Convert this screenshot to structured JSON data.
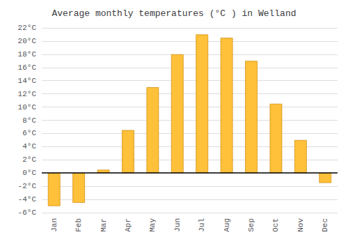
{
  "chart_data": {
    "type": "bar",
    "title": "Average monthly temperatures (°C ) in Welland",
    "categories": [
      "Jan",
      "Feb",
      "Mar",
      "Apr",
      "May",
      "Jun",
      "Jul",
      "Aug",
      "Sep",
      "Oct",
      "Nov",
      "Dec"
    ],
    "values": [
      -5.0,
      -4.5,
      0.5,
      6.5,
      13.0,
      18.0,
      21.0,
      20.5,
      17.0,
      10.5,
      5.0,
      -1.5
    ],
    "color": "#FFC03A",
    "ylim": [
      -6,
      22
    ],
    "yticks": [
      {
        "value": -6,
        "label": "-6°C"
      },
      {
        "value": -4,
        "label": "-4°C"
      },
      {
        "value": -2,
        "label": "-2°C"
      },
      {
        "value": 0,
        "label": "0°C"
      },
      {
        "value": 2,
        "label": "2°C"
      },
      {
        "value": 4,
        "label": "4°C"
      },
      {
        "value": 6,
        "label": "6°C"
      },
      {
        "value": 8,
        "label": "8°C"
      },
      {
        "value": 10,
        "label": "10°C"
      },
      {
        "value": 12,
        "label": "12°C"
      },
      {
        "value": 14,
        "label": "14°C"
      },
      {
        "value": 16,
        "label": "16°C"
      },
      {
        "value": 18,
        "label": "18°C"
      },
      {
        "value": 20,
        "label": "20°C"
      },
      {
        "value": 22,
        "label": "22°C"
      }
    ],
    "grid": true
  }
}
